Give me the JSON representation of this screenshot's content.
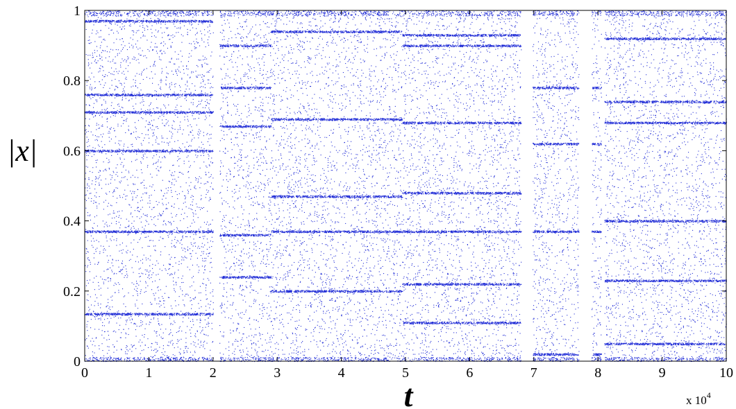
{
  "chart_data": {
    "type": "scatter",
    "title": "",
    "xlabel": "t",
    "ylabel": "|x|",
    "x_multiplier": "x 10",
    "x_multiplier_exp": "4",
    "xlim": [
      0,
      10
    ],
    "ylim": [
      0,
      1
    ],
    "x_ticks": [
      "0",
      "1",
      "2",
      "3",
      "4",
      "5",
      "6",
      "7",
      "8",
      "9",
      "10"
    ],
    "y_ticks": [
      "0",
      "0.2",
      "0.4",
      "0.6",
      "0.8",
      "1"
    ],
    "grid": false,
    "legend": "none",
    "marker_color": "#1f2bd6",
    "series": [
      {
        "description_free": true,
        "segments": [
          {
            "x_start": 0.0,
            "x_end": 2.0,
            "levels": [
              0.97,
              0.76,
              0.71,
              0.6,
              0.37,
              0.135
            ]
          },
          {
            "x_start": 2.05,
            "x_end": 2.9,
            "levels": [
              0.9,
              0.78,
              0.67,
              0.36,
              0.24
            ]
          },
          {
            "x_start": 2.9,
            "x_end": 4.95,
            "levels": [
              0.94,
              0.69,
              0.47,
              0.37,
              0.2
            ]
          },
          {
            "x_start": 4.95,
            "x_end": 6.8,
            "levels": [
              0.93,
              0.9,
              0.68,
              0.48,
              0.37,
              0.22,
              0.11
            ]
          },
          {
            "x_start": 6.8,
            "x_end": 7.7,
            "levels": [
              0.78,
              0.62,
              0.37,
              0.02
            ]
          },
          {
            "x_start": 7.7,
            "x_end": 8.1,
            "levels": [
              0.78,
              0.62,
              0.37,
              0.02
            ]
          },
          {
            "x_start": 8.1,
            "x_end": 10.0,
            "levels": [
              0.92,
              0.68,
              0.4,
              0.23,
              0.74,
              0.05
            ]
          }
        ],
        "gaps": [
          [
            2.0,
            2.1
          ],
          [
            6.8,
            6.98
          ],
          [
            7.7,
            7.9
          ],
          [
            8.05,
            8.1
          ]
        ]
      }
    ]
  }
}
